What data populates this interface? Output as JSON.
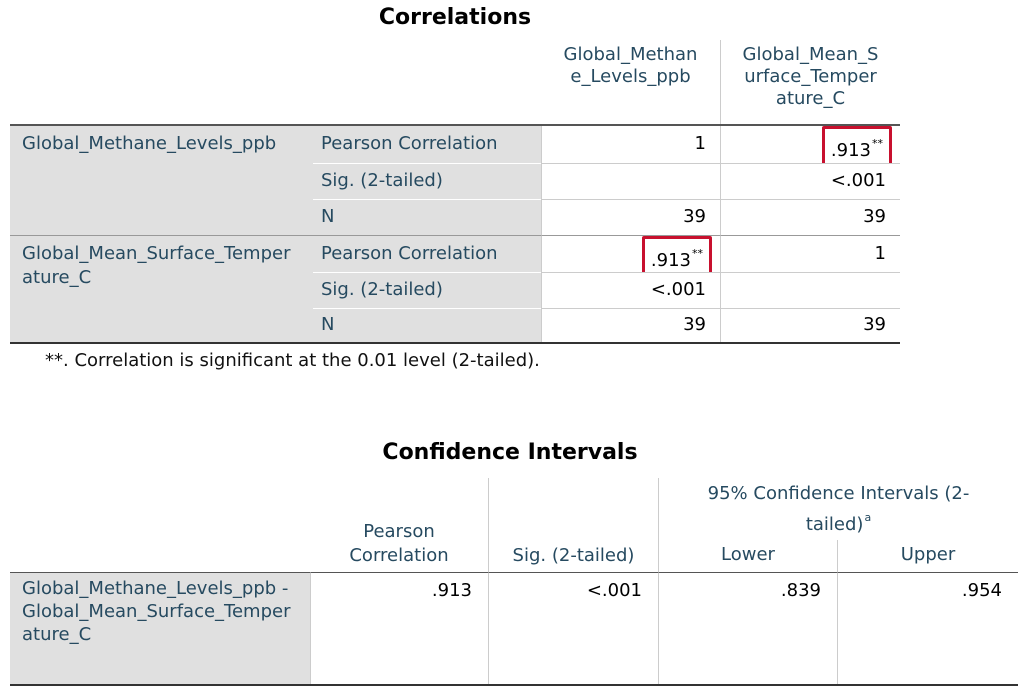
{
  "correlations": {
    "title": "Correlations",
    "columns": [
      "Global_Methane_Levels_ppb",
      "Global_Mean_Surface_Temperature_C"
    ],
    "groups": [
      {
        "label": "Global_Methane_Levels_ppb",
        "rows": [
          {
            "statistic": "Pearson Correlation",
            "cells": [
              "1",
              {
                "text": ".913",
                "sup": "**",
                "highlight": true
              }
            ]
          },
          {
            "statistic": "Sig. (2-tailed)",
            "cells": [
              null,
              "<.001"
            ]
          },
          {
            "statistic": "N",
            "cells": [
              "39",
              "39"
            ]
          }
        ]
      },
      {
        "label": "Global_Mean_Surface_Temperature_C",
        "rows": [
          {
            "statistic": "Pearson Correlation",
            "cells": [
              {
                "text": ".913",
                "sup": "**",
                "highlight": true
              },
              "1"
            ]
          },
          {
            "statistic": "Sig. (2-tailed)",
            "cells": [
              "<.001",
              null
            ]
          },
          {
            "statistic": "N",
            "cells": [
              "39",
              "39"
            ]
          }
        ]
      }
    ],
    "footnote": "**. Correlation is significant at the 0.01 level (2-tailed)."
  },
  "confidence_intervals": {
    "title": "Confidence Intervals",
    "columns": [
      "Pearson Correlation",
      "Sig. (2-tailed)"
    ],
    "interval_header": {
      "text": "95% Confidence Intervals (2-tailed)",
      "sup": "a"
    },
    "interval_columns": [
      "Lower",
      "Upper"
    ],
    "rows": [
      {
        "label": "Global_Methane_Levels_ppb - Global_Mean_Surface_Temperature_C",
        "cells": [
          ".913",
          "<.001",
          ".839",
          ".954"
        ]
      }
    ]
  }
}
